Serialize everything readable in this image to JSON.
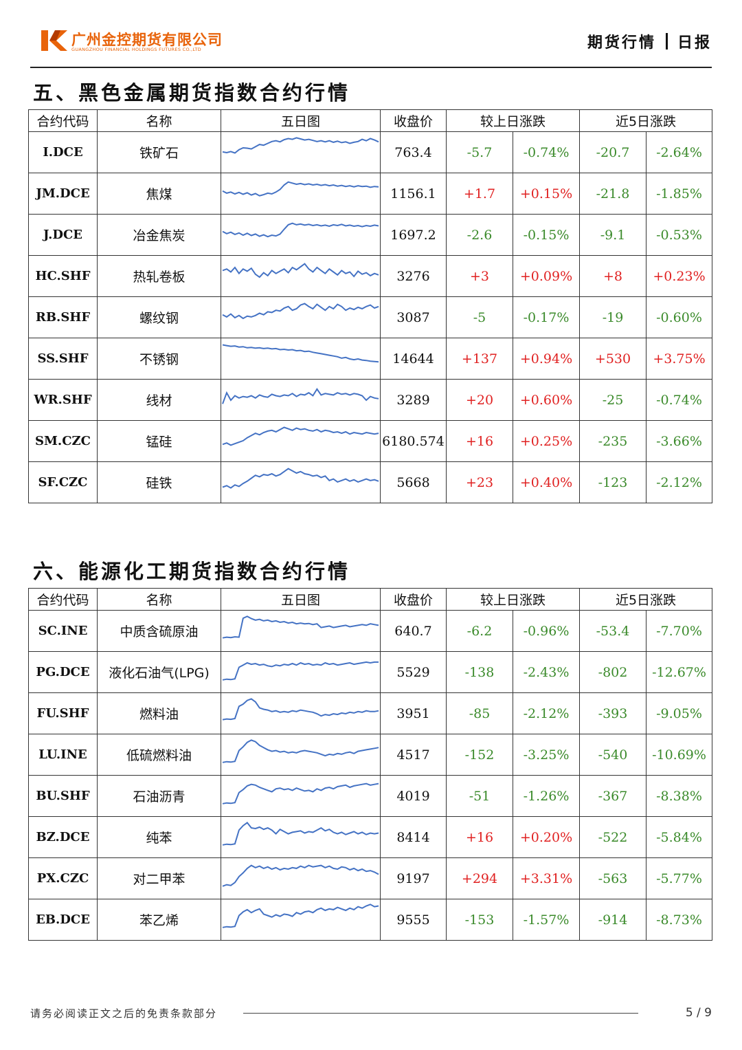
{
  "header": {
    "company_cn": "广州金控期货有限公司",
    "company_en": "GUANGZHOU FINANCIAL HOLDINGS FUTURES CO.,LTD",
    "category": "期货行情",
    "report_type": "日报",
    "brand_color": "#e8630a"
  },
  "sections": [
    {
      "title": "五、黑色金属期货指数合约行情",
      "columns": [
        "合约代码",
        "名称",
        "五日图",
        "收盘价",
        "较上日涨跌",
        "近5日涨跌"
      ],
      "rows": [
        {
          "code": "I.DCE",
          "name": "铁矿石",
          "close": "763.4",
          "chg": "-5.7",
          "chg_pct": "-0.74%",
          "chg5": "-20.7",
          "chg5_pct": "-2.64%",
          "spark": [
            52,
            50,
            53,
            49,
            58,
            63,
            62,
            60,
            66,
            72,
            70,
            75,
            80,
            82,
            79,
            85,
            88,
            86,
            90,
            87,
            84,
            86,
            83,
            80,
            82,
            79,
            82,
            78,
            81,
            77,
            79,
            75,
            78,
            80,
            86,
            82,
            88,
            84,
            79
          ]
        },
        {
          "code": "JM.DCE",
          "name": "焦煤",
          "close": "1156.1",
          "chg": "+1.7",
          "chg_pct": "+0.15%",
          "chg5": "-21.8",
          "chg5_pct": "-1.85%",
          "spark": [
            58,
            52,
            55,
            50,
            54,
            49,
            53,
            47,
            51,
            45,
            48,
            52,
            50,
            55,
            62,
            74,
            82,
            79,
            76,
            78,
            75,
            77,
            74,
            76,
            73,
            75,
            72,
            74,
            71,
            73,
            70,
            72,
            69,
            72,
            70,
            71,
            68,
            70,
            69
          ]
        },
        {
          "code": "J.DCE",
          "name": "冶金焦炭",
          "close": "1697.2",
          "chg": "-2.6",
          "chg_pct": "-0.15%",
          "chg5": "-9.1",
          "chg5_pct": "-0.53%",
          "spark": [
            60,
            54,
            58,
            52,
            56,
            50,
            55,
            49,
            53,
            47,
            51,
            46,
            50,
            48,
            53,
            66,
            78,
            82,
            78,
            80,
            77,
            79,
            76,
            78,
            75,
            77,
            74,
            78,
            76,
            79,
            75,
            77,
            74,
            76,
            73,
            76,
            74,
            77,
            75
          ]
        },
        {
          "code": "HC.SHF",
          "name": "热轧卷板",
          "close": "3276",
          "chg": "+3",
          "chg_pct": "+0.09%",
          "chg5": "+8",
          "chg5_pct": "+0.23%",
          "spark": [
            66,
            70,
            62,
            74,
            58,
            70,
            64,
            72,
            56,
            48,
            60,
            52,
            66,
            58,
            64,
            70,
            60,
            74,
            68,
            76,
            84,
            70,
            62,
            74,
            66,
            58,
            70,
            62,
            54,
            66,
            58,
            62,
            50,
            64,
            56,
            60,
            52,
            58,
            54
          ]
        },
        {
          "code": "RB.SHF",
          "name": "螺纹钢",
          "close": "3087",
          "chg": "-5",
          "chg_pct": "-0.17%",
          "chg5": "-19",
          "chg5_pct": "-0.60%",
          "spark": [
            58,
            52,
            60,
            50,
            56,
            48,
            54,
            52,
            56,
            62,
            58,
            66,
            64,
            70,
            68,
            76,
            80,
            70,
            74,
            84,
            88,
            80,
            74,
            86,
            78,
            70,
            80,
            74,
            86,
            80,
            70,
            76,
            72,
            78,
            74,
            80,
            84,
            76,
            80
          ]
        },
        {
          "code": "SS.SHF",
          "name": "不锈钢",
          "close": "14644",
          "chg": "+137",
          "chg_pct": "+0.94%",
          "chg5": "+530",
          "chg5_pct": "+3.75%",
          "spark": [
            88,
            86,
            84,
            85,
            82,
            83,
            80,
            81,
            79,
            80,
            78,
            79,
            77,
            78,
            75,
            76,
            74,
            75,
            72,
            73,
            70,
            71,
            68,
            66,
            64,
            62,
            60,
            58,
            56,
            52,
            54,
            50,
            48,
            50,
            47,
            46,
            44,
            43,
            42
          ]
        },
        {
          "code": "WR.SHF",
          "name": "线材",
          "close": "3289",
          "chg": "+20",
          "chg_pct": "+0.60%",
          "chg5": "-25",
          "chg5_pct": "-0.74%",
          "spark": [
            40,
            70,
            50,
            62,
            56,
            60,
            58,
            62,
            56,
            64,
            60,
            58,
            66,
            62,
            60,
            64,
            62,
            68,
            60,
            66,
            64,
            70,
            62,
            80,
            64,
            68,
            66,
            64,
            70,
            66,
            68,
            64,
            68,
            66,
            62,
            50,
            60,
            56,
            54
          ]
        },
        {
          "code": "SM.CZC",
          "name": "锰硅",
          "close": "6180.574",
          "chg": "+16",
          "chg_pct": "+0.25%",
          "chg5": "-235",
          "chg5_pct": "-3.66%",
          "spark": [
            42,
            46,
            40,
            44,
            48,
            52,
            60,
            66,
            72,
            68,
            74,
            78,
            80,
            76,
            82,
            88,
            84,
            80,
            86,
            82,
            84,
            80,
            78,
            82,
            76,
            80,
            78,
            74,
            76,
            72,
            76,
            70,
            74,
            72,
            70,
            74,
            72,
            70,
            72
          ]
        },
        {
          "code": "SF.CZC",
          "name": "硅铁",
          "close": "5668",
          "chg": "+23",
          "chg_pct": "+0.40%",
          "chg5": "-123",
          "chg5_pct": "-2.12%",
          "spark": [
            38,
            42,
            36,
            44,
            40,
            48,
            54,
            62,
            70,
            66,
            72,
            70,
            74,
            68,
            72,
            80,
            88,
            82,
            76,
            80,
            74,
            72,
            68,
            70,
            64,
            68,
            56,
            60,
            52,
            56,
            60,
            54,
            58,
            52,
            56,
            60,
            56,
            58,
            54
          ]
        }
      ]
    },
    {
      "title": "六、能源化工期货指数合约行情",
      "columns": [
        "合约代码",
        "名称",
        "五日图",
        "收盘价",
        "较上日涨跌",
        "近5日涨跌"
      ],
      "rows": [
        {
          "code": "SC.INE",
          "name": "中质含硫原油",
          "close": "640.7",
          "chg": "-6.2",
          "chg_pct": "-0.96%",
          "chg5": "-53.4",
          "chg5_pct": "-7.70%",
          "spark": [
            32,
            34,
            33,
            35,
            34,
            85,
            90,
            84,
            80,
            82,
            78,
            80,
            76,
            78,
            74,
            76,
            72,
            74,
            70,
            72,
            70,
            71,
            68,
            70,
            60,
            62,
            64,
            60,
            62,
            64,
            66,
            62,
            64,
            66,
            68,
            66,
            70,
            68,
            66
          ]
        },
        {
          "code": "PG.DCE",
          "name": "液化石油气(LPG)",
          "close": "5529",
          "chg": "-138",
          "chg_pct": "-2.43%",
          "chg5": "-802",
          "chg5_pct": "-12.67%",
          "spark": [
            30,
            32,
            31,
            33,
            64,
            70,
            76,
            72,
            74,
            70,
            72,
            68,
            66,
            70,
            68,
            72,
            70,
            74,
            70,
            76,
            72,
            74,
            70,
            72,
            70,
            76,
            72,
            74,
            70,
            72,
            74,
            76,
            72,
            74,
            76,
            78,
            76,
            78,
            78
          ]
        },
        {
          "code": "FU.SHF",
          "name": "燃料油",
          "close": "3951",
          "chg": "-85",
          "chg_pct": "-2.12%",
          "chg5": "-393",
          "chg5_pct": "-9.05%",
          "spark": [
            34,
            36,
            35,
            37,
            70,
            76,
            86,
            90,
            82,
            66,
            62,
            60,
            56,
            58,
            54,
            56,
            54,
            58,
            56,
            60,
            58,
            56,
            54,
            50,
            44,
            48,
            46,
            50,
            48,
            52,
            50,
            54,
            52,
            56,
            54,
            58,
            56,
            56,
            58
          ]
        },
        {
          "code": "LU.INE",
          "name": "低硫燃料油",
          "close": "4517",
          "chg": "-152",
          "chg_pct": "-3.25%",
          "chg5": "-540",
          "chg5_pct": "-10.69%",
          "spark": [
            30,
            32,
            31,
            33,
            62,
            72,
            84,
            90,
            86,
            76,
            70,
            64,
            60,
            62,
            58,
            60,
            56,
            58,
            56,
            60,
            62,
            60,
            58,
            56,
            52,
            48,
            52,
            50,
            54,
            52,
            56,
            58,
            54,
            60,
            62,
            64,
            66,
            68,
            70
          ]
        },
        {
          "code": "BU.SHF",
          "name": "石油沥青",
          "close": "4019",
          "chg": "-51",
          "chg_pct": "-1.26%",
          "chg5": "-367",
          "chg5_pct": "-8.38%",
          "spark": [
            30,
            32,
            31,
            33,
            60,
            68,
            78,
            82,
            80,
            74,
            70,
            66,
            62,
            70,
            72,
            68,
            70,
            66,
            72,
            68,
            64,
            66,
            62,
            70,
            66,
            72,
            74,
            70,
            76,
            78,
            80,
            74,
            78,
            80,
            82,
            84,
            80,
            82,
            84
          ]
        },
        {
          "code": "BZ.DCE",
          "name": "纯苯",
          "close": "8414",
          "chg": "+16",
          "chg_pct": "+0.20%",
          "chg5": "-522",
          "chg5_pct": "-5.84%",
          "spark": [
            30,
            32,
            31,
            33,
            70,
            82,
            90,
            76,
            74,
            78,
            72,
            76,
            70,
            60,
            72,
            66,
            60,
            64,
            66,
            68,
            62,
            66,
            64,
            70,
            76,
            68,
            72,
            64,
            60,
            64,
            58,
            62,
            66,
            60,
            64,
            58,
            62,
            60,
            62
          ]
        },
        {
          "code": "PX.CZC",
          "name": "对二甲苯",
          "close": "9197",
          "chg": "+294",
          "chg_pct": "+3.31%",
          "chg5": "-563",
          "chg5_pct": "-5.77%",
          "spark": [
            30,
            34,
            32,
            40,
            56,
            66,
            78,
            86,
            80,
            84,
            78,
            82,
            76,
            80,
            74,
            78,
            76,
            80,
            78,
            84,
            80,
            86,
            82,
            84,
            86,
            80,
            84,
            78,
            76,
            82,
            80,
            74,
            78,
            72,
            76,
            70,
            72,
            68,
            62
          ]
        },
        {
          "code": "EB.DCE",
          "name": "苯乙烯",
          "close": "9555",
          "chg": "-153",
          "chg_pct": "-1.57%",
          "chg5": "-914",
          "chg5_pct": "-8.73%",
          "spark": [
            30,
            32,
            31,
            33,
            62,
            72,
            78,
            70,
            76,
            80,
            66,
            62,
            58,
            64,
            60,
            66,
            64,
            60,
            70,
            66,
            72,
            74,
            70,
            78,
            82,
            76,
            80,
            78,
            84,
            80,
            76,
            82,
            78,
            86,
            82,
            88,
            92,
            86,
            88
          ]
        }
      ]
    }
  ],
  "footer": {
    "note": "请务必阅读正文之后的免责条款部分",
    "page": "5 / 9"
  },
  "colors": {
    "up": "#e02020",
    "down": "#3a8a2a",
    "sparkline": "#4472c4"
  }
}
